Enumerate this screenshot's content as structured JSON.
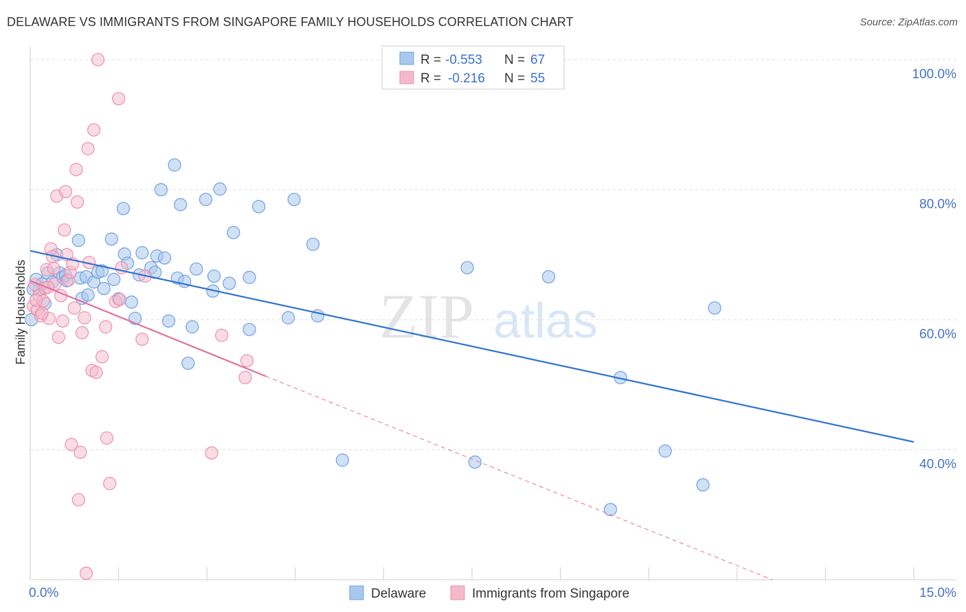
{
  "title": "DELAWARE VS IMMIGRANTS FROM SINGAPORE FAMILY HOUSEHOLDS CORRELATION CHART",
  "source": "Source: ZipAtlas.com",
  "watermark": {
    "zip": "ZIP",
    "atlas": "atlas"
  },
  "colors": {
    "delaware_fill": "#a9c8ee",
    "delaware_stroke": "#6f9fe0",
    "delaware_line": "#2f72d0",
    "singapore_fill": "#f6b9cb",
    "singapore_stroke": "#ec8fab",
    "singapore_line": "#e0709a",
    "axis_text": "#4472c4",
    "grid": "#dddddd"
  },
  "legend": {
    "r_label": "R =",
    "n_label": "N =",
    "rows": [
      {
        "r": "-0.553",
        "n": "67"
      },
      {
        "r": "-0.216",
        "n": "55"
      }
    ]
  },
  "chart_data": {
    "type": "scatter",
    "title": "DELAWARE VS IMMIGRANTS FROM SINGAPORE FAMILY HOUSEHOLDS CORRELATION CHART",
    "xlabel": "",
    "ylabel": "Family Households",
    "xlim": [
      0,
      15
    ],
    "ylim": [
      20,
      102
    ],
    "x_ticks_labeled": [
      "0.0%",
      "15.0%"
    ],
    "y_ticks": [
      {
        "value": 40,
        "label": "40.0%"
      },
      {
        "value": 60,
        "label": "60.0%"
      },
      {
        "value": 80,
        "label": "80.0%"
      },
      {
        "value": 100,
        "label": "100.0%"
      }
    ],
    "legend_position": "top-center",
    "grid": true,
    "series": [
      {
        "name": "Delaware",
        "r": -0.553,
        "n": 67,
        "trend": {
          "x": [
            0.0,
            15.0
          ],
          "y": [
            70.6,
            41.2
          ]
        },
        "points": [
          [
            0.02,
            60.0
          ],
          [
            0.1,
            66.2
          ],
          [
            0.15,
            64.6
          ],
          [
            0.2,
            65.5
          ],
          [
            0.25,
            62.5
          ],
          [
            0.3,
            67.2
          ],
          [
            0.38,
            65.8
          ],
          [
            0.45,
            70.0
          ],
          [
            0.5,
            67.2
          ],
          [
            0.55,
            66.5
          ],
          [
            0.6,
            66.8
          ],
          [
            0.62,
            66.0
          ],
          [
            0.82,
            72.2
          ],
          [
            0.85,
            66.4
          ],
          [
            0.88,
            63.3
          ],
          [
            0.95,
            66.6
          ],
          [
            0.98,
            63.8
          ],
          [
            1.08,
            65.8
          ],
          [
            1.15,
            67.3
          ],
          [
            1.22,
            67.5
          ],
          [
            1.25,
            64.8
          ],
          [
            1.38,
            72.4
          ],
          [
            1.42,
            66.2
          ],
          [
            1.5,
            63.2
          ],
          [
            1.58,
            77.1
          ],
          [
            1.6,
            70.1
          ],
          [
            1.65,
            68.7
          ],
          [
            1.72,
            62.7
          ],
          [
            1.78,
            60.2
          ],
          [
            1.85,
            66.9
          ],
          [
            1.9,
            70.3
          ],
          [
            2.05,
            68.0
          ],
          [
            2.12,
            67.3
          ],
          [
            2.15,
            69.8
          ],
          [
            2.22,
            80.0
          ],
          [
            2.28,
            69.5
          ],
          [
            2.35,
            59.8
          ],
          [
            2.45,
            83.8
          ],
          [
            2.5,
            66.4
          ],
          [
            2.55,
            77.7
          ],
          [
            2.62,
            65.9
          ],
          [
            2.68,
            53.3
          ],
          [
            2.75,
            58.9
          ],
          [
            2.82,
            67.8
          ],
          [
            2.98,
            78.5
          ],
          [
            3.12,
            66.7
          ],
          [
            3.1,
            64.4
          ],
          [
            3.22,
            80.1
          ],
          [
            3.38,
            65.6
          ],
          [
            3.45,
            73.4
          ],
          [
            3.72,
            66.5
          ],
          [
            3.72,
            58.5
          ],
          [
            3.88,
            77.4
          ],
          [
            4.38,
            60.3
          ],
          [
            4.48,
            78.5
          ],
          [
            4.8,
            71.6
          ],
          [
            4.88,
            60.6
          ],
          [
            5.3,
            38.4
          ],
          [
            7.42,
            68.0
          ],
          [
            7.55,
            38.1
          ],
          [
            8.8,
            66.6
          ],
          [
            9.85,
            30.8
          ],
          [
            10.02,
            51.1
          ],
          [
            10.78,
            39.8
          ],
          [
            11.42,
            34.6
          ],
          [
            11.62,
            61.8
          ],
          [
            0.05,
            64.7
          ]
        ]
      },
      {
        "name": "Immigrants from Singapore",
        "r": -0.216,
        "n": 55,
        "trend_solid": {
          "x": [
            0.0,
            4.0
          ],
          "y": [
            66.0,
            51.3
          ]
        },
        "trend_dashed": {
          "x": [
            4.0,
            12.6
          ],
          "y": [
            51.3,
            20.0
          ]
        },
        "points": [
          [
            0.05,
            62.1
          ],
          [
            0.08,
            65.4
          ],
          [
            0.12,
            61.5
          ],
          [
            0.15,
            63.7
          ],
          [
            0.18,
            60.6
          ],
          [
            0.22,
            62.9
          ],
          [
            0.25,
            64.9
          ],
          [
            0.28,
            67.7
          ],
          [
            0.32,
            60.2
          ],
          [
            0.35,
            70.9
          ],
          [
            0.38,
            69.7
          ],
          [
            0.42,
            65.5
          ],
          [
            0.45,
            79.0
          ],
          [
            0.48,
            57.3
          ],
          [
            0.52,
            63.7
          ],
          [
            0.55,
            59.8
          ],
          [
            0.58,
            73.8
          ],
          [
            0.6,
            79.7
          ],
          [
            0.62,
            70.0
          ],
          [
            0.65,
            66.1
          ],
          [
            0.68,
            67.3
          ],
          [
            0.7,
            40.8
          ],
          [
            0.72,
            68.6
          ],
          [
            0.75,
            61.8
          ],
          [
            0.78,
            83.1
          ],
          [
            0.8,
            78.1
          ],
          [
            0.82,
            32.3
          ],
          [
            0.85,
            39.6
          ],
          [
            0.88,
            58.0
          ],
          [
            0.92,
            60.3
          ],
          [
            0.95,
            21.0
          ],
          [
            0.98,
            86.3
          ],
          [
            1.0,
            68.8
          ],
          [
            1.05,
            52.2
          ],
          [
            1.08,
            89.2
          ],
          [
            1.12,
            51.9
          ],
          [
            1.15,
            100.0
          ],
          [
            1.22,
            54.3
          ],
          [
            1.28,
            58.9
          ],
          [
            1.3,
            41.8
          ],
          [
            1.35,
            34.8
          ],
          [
            1.45,
            62.8
          ],
          [
            1.5,
            94.0
          ],
          [
            1.52,
            63.1
          ],
          [
            1.55,
            68.0
          ],
          [
            1.9,
            57.0
          ],
          [
            1.95,
            66.7
          ],
          [
            3.08,
            39.5
          ],
          [
            3.25,
            57.6
          ],
          [
            3.65,
            51.1
          ],
          [
            3.68,
            53.7
          ],
          [
            0.1,
            63.0
          ],
          [
            0.2,
            61.0
          ],
          [
            0.3,
            65.0
          ],
          [
            0.4,
            67.9
          ]
        ]
      }
    ]
  },
  "bottom_legend": [
    {
      "label": "Delaware"
    },
    {
      "label": "Immigrants from Singapore"
    }
  ]
}
